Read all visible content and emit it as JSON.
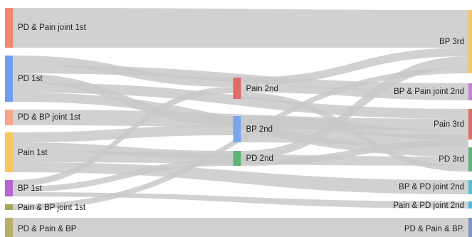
{
  "diagram": {
    "type": "sankey",
    "stages": [
      "1st",
      "2nd",
      "3rd"
    ],
    "link_color": "#c9c9c9",
    "nodes": [
      {
        "id": "pdpain1",
        "label": "PD & Pain joint 1st",
        "stage": 0,
        "color": "#f4876a"
      },
      {
        "id": "pd1",
        "label": "PD 1st",
        "stage": 0,
        "color": "#6fa0ee"
      },
      {
        "id": "pdbp1",
        "label": "PD & BP joint 1st",
        "stage": 0,
        "color": "#f6a58b"
      },
      {
        "id": "pain1",
        "label": "Pain 1st",
        "stage": 0,
        "color": "#f6c75c"
      },
      {
        "id": "bp1",
        "label": "BP 1st",
        "stage": 0,
        "color": "#b566cf"
      },
      {
        "id": "painbp1",
        "label": "Pain & BP joint 1st",
        "stage": 0,
        "color": "#a7a75c"
      },
      {
        "id": "pdpainbp1",
        "label": "PD & Pain & BP",
        "stage": 0,
        "color": "#b7b069"
      },
      {
        "id": "pain2",
        "label": "Pain 2nd",
        "stage": 1,
        "color": "#e06b66"
      },
      {
        "id": "bp2",
        "label": "BP 2nd",
        "stage": 1,
        "color": "#7aa6ef"
      },
      {
        "id": "pd2",
        "label": "PD 2nd",
        "stage": 1,
        "color": "#5db676"
      },
      {
        "id": "bp3",
        "label": "BP 3rd",
        "stage": 2,
        "color": "#f6c75c"
      },
      {
        "id": "bppain3",
        "label": "BP & Pain joint 2nd",
        "stage": 2,
        "color": "#c583d9"
      },
      {
        "id": "pain3",
        "label": "Pain 3rd",
        "stage": 2,
        "color": "#e06b66"
      },
      {
        "id": "pd3",
        "label": "PD 3rd",
        "stage": 2,
        "color": "#5db676"
      },
      {
        "id": "bppd2",
        "label": "BP & PD joint 2nd",
        "stage": 2,
        "color": "#56c2cf"
      },
      {
        "id": "painpd2",
        "label": "Pain & PD joint 2nd",
        "stage": 2,
        "color": "#4fb8e0"
      },
      {
        "id": "pdpainbp3",
        "label": "PD & Pain & BP.",
        "stage": 2,
        "color": "#7f93c9"
      }
    ],
    "links": [
      {
        "source": "pdpain1",
        "target": "bp3"
      },
      {
        "source": "pd1",
        "target": "pain2"
      },
      {
        "source": "pd1",
        "target": "bppain3"
      },
      {
        "source": "pd1",
        "target": "bp2"
      },
      {
        "source": "pd1",
        "target": "pain3"
      },
      {
        "source": "pd1",
        "target": "pd3"
      },
      {
        "source": "pdbp1",
        "target": "pain3"
      },
      {
        "source": "pain1",
        "target": "bp2"
      },
      {
        "source": "pain1",
        "target": "pd2"
      },
      {
        "source": "pain1",
        "target": "pd3"
      },
      {
        "source": "pain1",
        "target": "bppd2"
      },
      {
        "source": "bp1",
        "target": "pain2"
      },
      {
        "source": "bp1",
        "target": "pd2"
      },
      {
        "source": "bp1",
        "target": "painpd2"
      },
      {
        "source": "painbp1",
        "target": "bp3"
      },
      {
        "source": "pdpainbp1",
        "target": "pdpainbp3"
      },
      {
        "source": "pain2",
        "target": "bp3"
      },
      {
        "source": "pain2",
        "target": "bppain3"
      },
      {
        "source": "pain2",
        "target": "pd3"
      },
      {
        "source": "bp2",
        "target": "pain3"
      },
      {
        "source": "bp2",
        "target": "pd3"
      },
      {
        "source": "pd2",
        "target": "bp3"
      },
      {
        "source": "pd2",
        "target": "pain3"
      }
    ]
  }
}
